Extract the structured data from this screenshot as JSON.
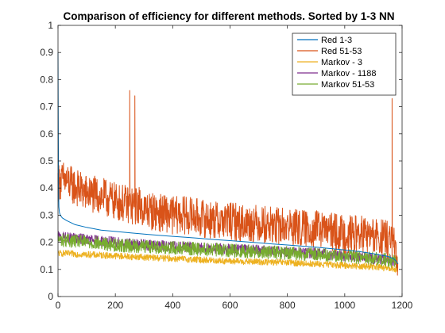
{
  "chart_data": {
    "type": "line",
    "title": "Comparison of efficiency for different methods. Sorted by 1-3 NN",
    "xlabel": "",
    "ylabel": "",
    "xlim": [
      0,
      1200
    ],
    "ylim": [
      0,
      1
    ],
    "xticks": [
      0,
      200,
      400,
      600,
      800,
      1000,
      1200
    ],
    "yticks": [
      0,
      0.1,
      0.2,
      0.3,
      0.4,
      0.5,
      0.6,
      0.7,
      0.8,
      0.9,
      1
    ],
    "xtick_labels": [
      "0",
      "200",
      "400",
      "600",
      "800",
      "1000",
      "1200"
    ],
    "ytick_labels": [
      "0",
      "0.1",
      "0.2",
      "0.3",
      "0.4",
      "0.5",
      "0.6",
      "0.7",
      "0.8",
      "0.9",
      "1"
    ],
    "grid": false,
    "legend_position": "top-right",
    "series": [
      {
        "name": "Red 1-3",
        "color": "#0072BD",
        "x": [
          0,
          1,
          2,
          3,
          5,
          8,
          15,
          30,
          60,
          100,
          150,
          200,
          250,
          300,
          350,
          400,
          450,
          500,
          550,
          600,
          650,
          700,
          750,
          800,
          850,
          900,
          950,
          1000,
          1050,
          1100,
          1150,
          1170,
          1180,
          1185
        ],
        "y": [
          0.9,
          0.6,
          0.4,
          0.33,
          0.31,
          0.3,
          0.29,
          0.28,
          0.265,
          0.255,
          0.245,
          0.24,
          0.235,
          0.23,
          0.226,
          0.222,
          0.218,
          0.214,
          0.21,
          0.206,
          0.202,
          0.198,
          0.194,
          0.19,
          0.186,
          0.182,
          0.177,
          0.172,
          0.166,
          0.158,
          0.148,
          0.14,
          0.13,
          0.12
        ]
      },
      {
        "name": "Red 51-53",
        "color": "#D95319",
        "x": [
          0,
          20,
          50,
          100,
          150,
          200,
          240,
          250,
          252,
          260,
          268,
          270,
          280,
          300,
          350,
          400,
          450,
          500,
          550,
          600,
          650,
          700,
          750,
          800,
          850,
          900,
          950,
          1000,
          1050,
          1100,
          1150,
          1165,
          1170,
          1175,
          1180,
          1185
        ],
        "y": [
          0.42,
          0.43,
          0.41,
          0.38,
          0.37,
          0.35,
          0.34,
          0.76,
          0.34,
          0.33,
          0.74,
          0.33,
          0.34,
          0.32,
          0.31,
          0.3,
          0.3,
          0.29,
          0.28,
          0.28,
          0.27,
          0.27,
          0.26,
          0.26,
          0.25,
          0.25,
          0.24,
          0.23,
          0.23,
          0.22,
          0.21,
          0.73,
          0.2,
          0.16,
          0.12,
          0.1
        ],
        "noise_amplitude": 0.07
      },
      {
        "name": "Markov - 3",
        "color": "#EDB120",
        "x": [
          0,
          100,
          200,
          300,
          400,
          500,
          600,
          700,
          800,
          900,
          1000,
          1100,
          1185
        ],
        "y": [
          0.16,
          0.155,
          0.15,
          0.145,
          0.14,
          0.135,
          0.13,
          0.128,
          0.125,
          0.12,
          0.115,
          0.11,
          0.1
        ],
        "noise_amplitude": 0.012
      },
      {
        "name": "Markov - 1188",
        "color": "#7E2F8E",
        "x": [
          0,
          100,
          200,
          300,
          400,
          500,
          600,
          700,
          800,
          900,
          1000,
          1100,
          1185
        ],
        "y": [
          0.22,
          0.21,
          0.2,
          0.19,
          0.185,
          0.18,
          0.175,
          0.17,
          0.165,
          0.16,
          0.15,
          0.14,
          0.13
        ],
        "noise_amplitude": 0.02
      },
      {
        "name": "Markov 51-53",
        "color": "#77AC30",
        "x": [
          0,
          100,
          200,
          300,
          400,
          500,
          600,
          700,
          800,
          900,
          1000,
          1100,
          1185
        ],
        "y": [
          0.21,
          0.2,
          0.19,
          0.185,
          0.18,
          0.175,
          0.17,
          0.165,
          0.16,
          0.155,
          0.15,
          0.14,
          0.13
        ],
        "noise_amplitude": 0.025
      }
    ]
  }
}
